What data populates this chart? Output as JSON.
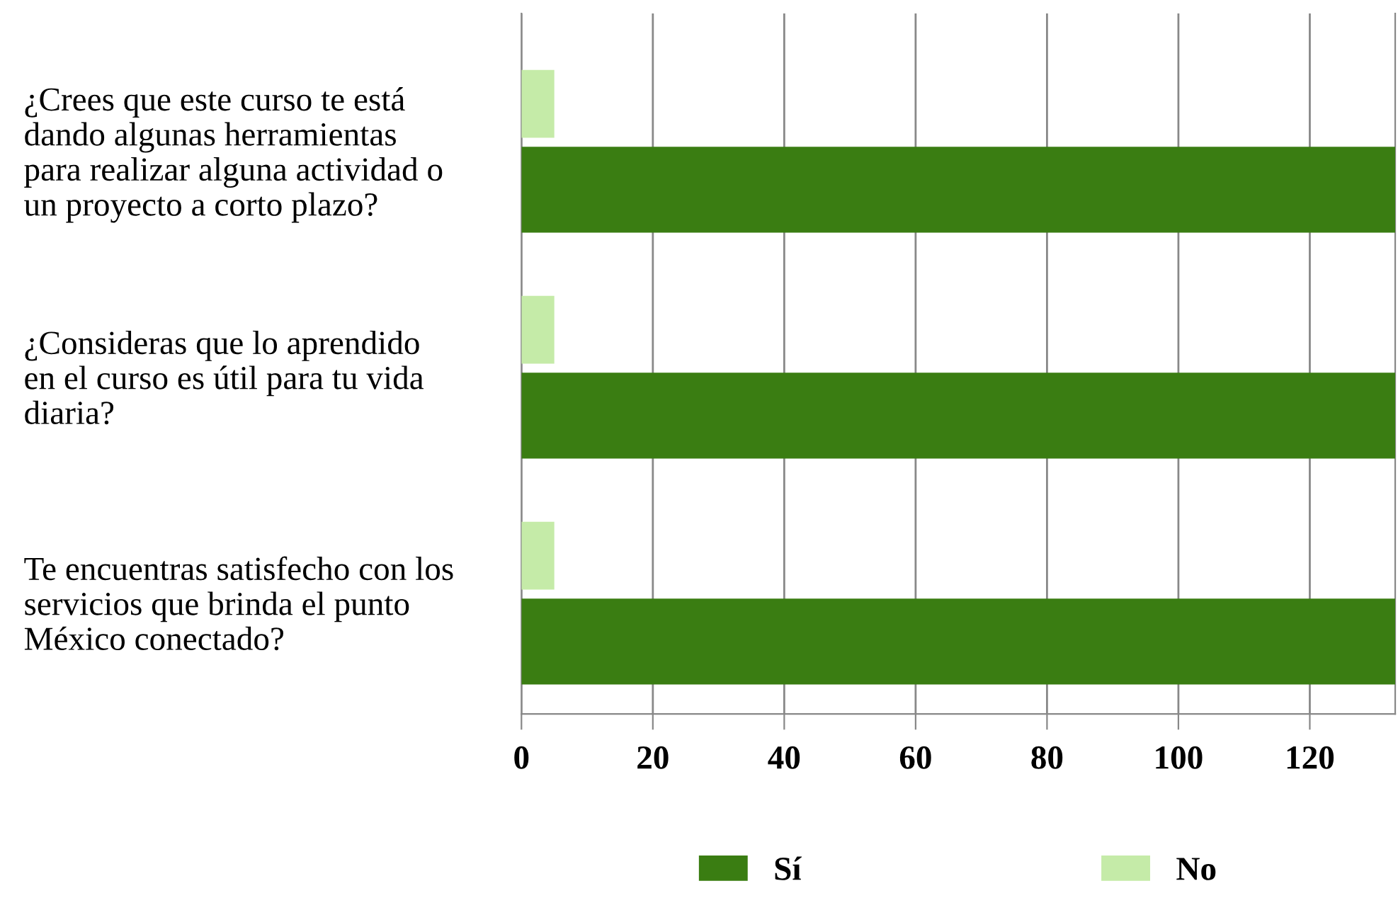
{
  "chart_data": {
    "type": "bar",
    "orientation": "horizontal",
    "categories": [
      "¿Crees que este curso te está\ndando algunas herramientas\npara realizar alguna actividad o\nun proyecto a corto plazo?",
      "¿Consideras que lo aprendido\nen el curso es útil para tu vida\ndiaria?",
      "Te encuentras satisfecho con los\nservicios que brinda el punto\nMéxico conectado?"
    ],
    "series": [
      {
        "name": "Sí",
        "color": "#3a7d12",
        "values": [
          133,
          133,
          133
        ]
      },
      {
        "name": "No",
        "color": "#c5eba8",
        "values": [
          5,
          5,
          5
        ]
      }
    ],
    "xlim": [
      0,
      133
    ],
    "xticks": [
      0,
      20,
      40,
      60,
      80,
      100,
      120
    ],
    "grid": "x",
    "legend": "bottom"
  }
}
